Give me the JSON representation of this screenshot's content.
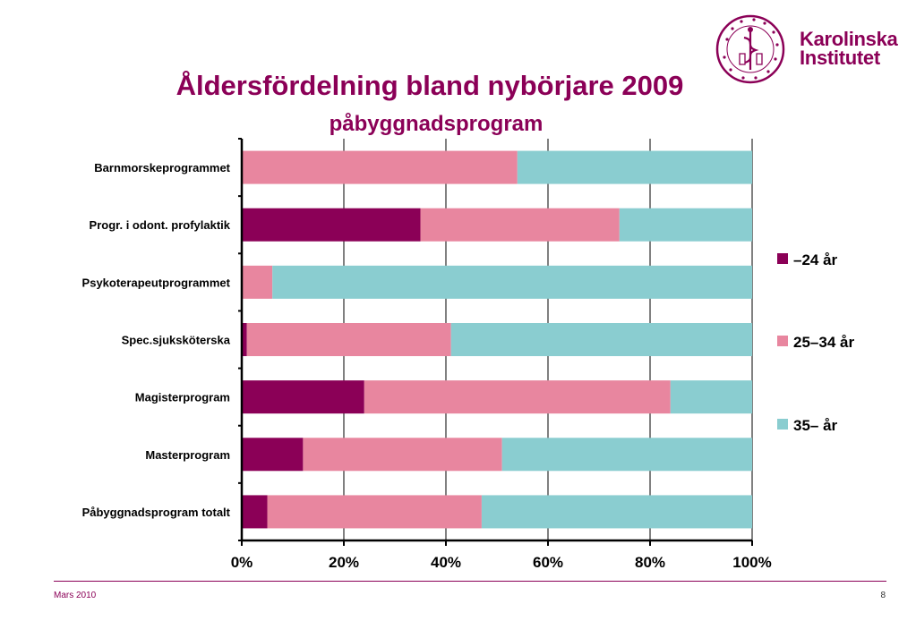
{
  "logo": {
    "line1": "Karolinska",
    "line2": "Institutet",
    "seal_text": "KAROLINSKA INSTITUTET ANNO 1810"
  },
  "footer": {
    "left": "Mars 2010",
    "page": "8"
  },
  "colors": {
    "brand": "#8b0057",
    "series": [
      "#8b0057",
      "#e8869f",
      "#8acdd0"
    ]
  },
  "chart_data": {
    "type": "bar",
    "orientation": "horizontal",
    "stacked": "percent",
    "title": "Åldersfördelning bland nybörjare 2009",
    "subtitle": "påbyggnadsprogram",
    "xlabel": "",
    "ylabel": "",
    "xlim": [
      0,
      100
    ],
    "x_ticks": [
      "0%",
      "20%",
      "40%",
      "60%",
      "80%",
      "100%"
    ],
    "grid": "vertical",
    "legend_position": "right",
    "categories": [
      "Barnmorskeprogrammet",
      "Progr. i odont. profylaktik",
      "Psykoterapeutprogrammet",
      "Spec.sjuksköterska",
      "Magisterprogram",
      "Masterprogram",
      "Påbyggnadsprogram totalt"
    ],
    "series": [
      {
        "name": "–24 år",
        "color": "#8b0057",
        "values": [
          0,
          35,
          0,
          1,
          24,
          12,
          5
        ]
      },
      {
        "name": "25–34 år",
        "color": "#e8869f",
        "values": [
          54,
          39,
          6,
          40,
          60,
          39,
          42
        ]
      },
      {
        "name": "35– år",
        "color": "#8acdd0",
        "values": [
          46,
          26,
          94,
          59,
          16,
          49,
          53
        ]
      }
    ]
  }
}
